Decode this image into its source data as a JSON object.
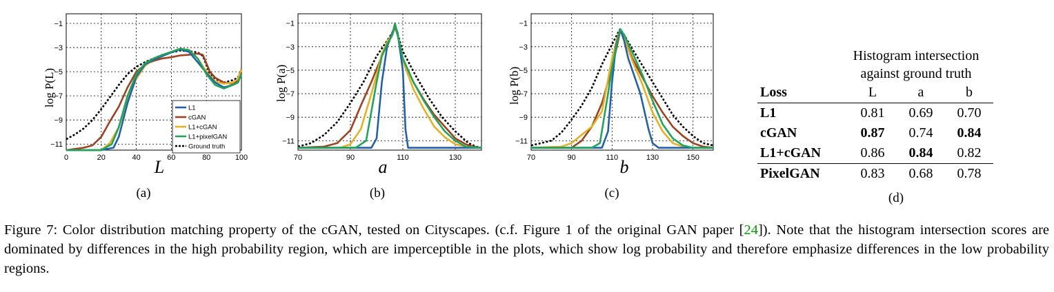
{
  "colors": {
    "l1": "#2160b0",
    "cgan": "#a0401e",
    "l1_cgan": "#e6b020",
    "l1_pixelgan": "#1fa55a",
    "ground_truth": "#000000",
    "ref_link": "#00a000"
  },
  "chart_data": [
    {
      "type": "line",
      "panel_label": "(a)",
      "xlabel": "L",
      "ylabel": "log P(L)",
      "xlim": [
        0,
        100
      ],
      "ylim": [
        -11.5,
        -0.2
      ],
      "xticks": [
        "0",
        "20",
        "40",
        "60",
        "80",
        "100"
      ],
      "yticks": [
        "-1",
        "-3",
        "-5",
        "-7",
        "-9",
        "-11"
      ],
      "grid": true,
      "legend": {
        "position": "bottom-right",
        "entries": [
          "L1",
          "cGAN",
          "L1+cGAN",
          "L1+pixelGAN",
          "Ground truth"
        ]
      },
      "series": [
        {
          "name": "L1",
          "x": [
            0,
            20,
            27,
            30,
            35,
            40,
            45,
            50,
            55,
            60,
            65,
            70,
            75,
            80,
            85,
            90,
            95,
            98,
            100
          ],
          "y": [
            -11.5,
            -11.5,
            -11.3,
            -10.4,
            -7.6,
            -5.4,
            -4.4,
            -4.0,
            -3.7,
            -3.4,
            -3.15,
            -3.35,
            -4.2,
            -5.1,
            -5.9,
            -6.3,
            -6.1,
            -5.9,
            -5.2
          ]
        },
        {
          "name": "cGAN",
          "x": [
            0,
            10,
            15,
            20,
            25,
            30,
            35,
            40,
            45,
            50,
            55,
            60,
            65,
            70,
            75,
            78,
            82,
            85,
            90,
            95,
            98,
            100
          ],
          "y": [
            -11.5,
            -11.3,
            -11.1,
            -10.4,
            -9.1,
            -7.9,
            -6.3,
            -5.0,
            -4.4,
            -4.1,
            -3.9,
            -3.8,
            -3.65,
            -3.6,
            -3.5,
            -3.6,
            -5.0,
            -5.5,
            -5.9,
            -6.0,
            -5.7,
            -4.8
          ]
        },
        {
          "name": "L1+cGAN",
          "x": [
            0,
            20,
            25,
            30,
            35,
            40,
            45,
            50,
            55,
            60,
            65,
            70,
            75,
            80,
            85,
            90,
            95,
            98,
            100
          ],
          "y": [
            -11.5,
            -11.5,
            -10.9,
            -9.6,
            -7.4,
            -5.6,
            -4.5,
            -4.0,
            -3.7,
            -3.4,
            -3.1,
            -3.2,
            -3.9,
            -5.0,
            -5.8,
            -6.0,
            -5.9,
            -5.6,
            -4.8
          ]
        },
        {
          "name": "L1+pixelGAN",
          "x": [
            0,
            20,
            26,
            30,
            35,
            40,
            45,
            50,
            55,
            60,
            65,
            70,
            75,
            80,
            85,
            90,
            95,
            98,
            100
          ],
          "y": [
            -11.5,
            -11.5,
            -11.0,
            -9.6,
            -7.0,
            -5.2,
            -4.3,
            -3.9,
            -3.6,
            -3.35,
            -3.1,
            -3.2,
            -3.9,
            -5.2,
            -6.1,
            -6.4,
            -6.1,
            -5.9,
            -5.2
          ]
        },
        {
          "name": "Ground truth",
          "x": [
            0,
            5,
            10,
            15,
            20,
            25,
            30,
            35,
            40,
            45,
            50,
            55,
            60,
            65,
            70,
            75,
            78,
            82,
            85,
            90,
            95,
            98,
            100
          ],
          "y": [
            -10.6,
            -10.2,
            -9.7,
            -9.0,
            -8.1,
            -7.1,
            -6.1,
            -5.2,
            -4.6,
            -4.2,
            -3.9,
            -3.6,
            -3.4,
            -3.25,
            -3.3,
            -3.4,
            -3.7,
            -5.2,
            -5.6,
            -5.9,
            -5.7,
            -5.5,
            -4.8
          ]
        }
      ]
    },
    {
      "type": "line",
      "panel_label": "(b)",
      "xlabel": "a",
      "ylabel": "log P(a)",
      "xlim": [
        70,
        140
      ],
      "ylim": [
        -11.8,
        -0.2
      ],
      "xticks": [
        "70",
        "90",
        "110",
        "130"
      ],
      "yticks": [
        "-1",
        "-3",
        "-5",
        "-7",
        "-9",
        "-11"
      ],
      "grid": true,
      "series": [
        {
          "name": "L1",
          "x": [
            70,
            98,
            100,
            102,
            104,
            106,
            107,
            108,
            110,
            111,
            112,
            140
          ],
          "y": [
            -11.6,
            -11.6,
            -10.8,
            -6.0,
            -3.0,
            -1.8,
            -1.2,
            -1.8,
            -5.0,
            -10.0,
            -11.6,
            -11.6
          ]
        },
        {
          "name": "cGAN",
          "x": [
            70,
            80,
            85,
            90,
            94,
            98,
            102,
            104,
            106,
            107,
            108,
            110,
            114,
            118,
            122,
            126,
            130,
            134,
            137,
            140
          ],
          "y": [
            -11.6,
            -11.5,
            -11.2,
            -10.1,
            -8.0,
            -6.0,
            -3.8,
            -2.8,
            -2.0,
            -1.3,
            -2.0,
            -4.0,
            -6.0,
            -7.5,
            -8.8,
            -9.8,
            -10.8,
            -11.3,
            -11.5,
            -11.6
          ]
        },
        {
          "name": "L1+cGAN",
          "x": [
            70,
            86,
            90,
            94,
            98,
            100,
            102,
            104,
            106,
            107,
            108,
            110,
            114,
            118,
            122,
            126,
            130,
            134,
            140
          ],
          "y": [
            -11.6,
            -11.6,
            -11.3,
            -10.0,
            -7.0,
            -5.4,
            -3.6,
            -2.6,
            -1.9,
            -1.2,
            -1.9,
            -4.2,
            -6.6,
            -8.3,
            -9.8,
            -10.7,
            -11.3,
            -11.5,
            -11.6
          ]
        },
        {
          "name": "L1+pixelGAN",
          "x": [
            70,
            92,
            96,
            98,
            100,
            102,
            104,
            106,
            107,
            108,
            110,
            114,
            118,
            122,
            126,
            130,
            134,
            140
          ],
          "y": [
            -11.6,
            -11.6,
            -11.0,
            -8.5,
            -6.0,
            -3.8,
            -2.8,
            -2.0,
            -1.0,
            -2.0,
            -4.0,
            -6.0,
            -7.6,
            -9.0,
            -10.2,
            -11.0,
            -11.5,
            -11.6
          ]
        },
        {
          "name": "Ground truth",
          "x": [
            70,
            75,
            80,
            85,
            90,
            95,
            100,
            104,
            106,
            107,
            108,
            110,
            115,
            120,
            125,
            130,
            135,
            138,
            140
          ],
          "y": [
            -11.5,
            -11.2,
            -10.5,
            -9.4,
            -7.8,
            -6.0,
            -3.8,
            -2.5,
            -1.8,
            -1.3,
            -1.9,
            -3.4,
            -5.5,
            -7.4,
            -9.0,
            -10.2,
            -11.2,
            -11.5,
            -11.6
          ]
        }
      ]
    },
    {
      "type": "line",
      "panel_label": "(c)",
      "xlabel": "b",
      "ylabel": "log P(b)",
      "xlim": [
        70,
        160
      ],
      "ylim": [
        -11.8,
        -0.2
      ],
      "xticks": [
        "70",
        "90",
        "110",
        "130",
        "150"
      ],
      "yticks": [
        "-1",
        "-3",
        "-5",
        "-7",
        "-9",
        "-11"
      ],
      "grid": true,
      "series": [
        {
          "name": "L1",
          "x": [
            70,
            105,
            108,
            110,
            112,
            114,
            116,
            118,
            120,
            124,
            128,
            130,
            133,
            160
          ],
          "y": [
            -11.6,
            -11.6,
            -10.2,
            -6.0,
            -2.8,
            -1.5,
            -2.5,
            -4.0,
            -5.0,
            -7.0,
            -10.0,
            -11.2,
            -11.6,
            -11.6
          ]
        },
        {
          "name": "cGAN",
          "x": [
            70,
            90,
            95,
            100,
            105,
            110,
            113,
            114,
            116,
            120,
            125,
            130,
            135,
            140,
            145,
            150,
            155,
            160
          ],
          "y": [
            -11.6,
            -11.6,
            -11.0,
            -9.8,
            -7.8,
            -4.8,
            -2.5,
            -1.6,
            -2.3,
            -4.0,
            -5.6,
            -7.2,
            -8.6,
            -9.8,
            -10.6,
            -11.2,
            -11.5,
            -11.6
          ]
        },
        {
          "name": "L1+cGAN",
          "x": [
            70,
            85,
            90,
            95,
            100,
            105,
            110,
            113,
            114,
            116,
            120,
            125,
            130,
            135,
            140,
            145,
            150,
            160
          ],
          "y": [
            -11.6,
            -11.5,
            -11.2,
            -10.5,
            -9.8,
            -8.5,
            -4.0,
            -2.0,
            -1.6,
            -2.3,
            -4.2,
            -6.2,
            -8.6,
            -10.2,
            -11.2,
            -11.5,
            -11.6,
            -11.6
          ]
        },
        {
          "name": "L1+pixelGAN",
          "x": [
            70,
            100,
            104,
            108,
            110,
            113,
            114,
            116,
            120,
            125,
            130,
            135,
            140,
            145,
            150,
            160
          ],
          "y": [
            -11.6,
            -11.6,
            -11.2,
            -7.0,
            -4.8,
            -2.2,
            -1.5,
            -2.0,
            -3.5,
            -5.4,
            -7.6,
            -9.6,
            -10.8,
            -11.4,
            -11.6,
            -11.6
          ]
        },
        {
          "name": "Ground truth",
          "x": [
            70,
            80,
            85,
            90,
            95,
            100,
            105,
            110,
            113,
            114,
            116,
            120,
            125,
            130,
            135,
            140,
            145,
            150,
            155,
            160
          ],
          "y": [
            -11.4,
            -11.0,
            -10.3,
            -9.2,
            -8.0,
            -6.5,
            -4.5,
            -2.8,
            -1.8,
            -1.5,
            -2.0,
            -3.2,
            -4.6,
            -6.0,
            -7.4,
            -8.8,
            -9.8,
            -10.6,
            -11.2,
            -11.4
          ]
        }
      ]
    }
  ],
  "table": {
    "title_line1": "Histogram intersection",
    "title_line2": "against ground truth",
    "columns": [
      "Loss",
      "L",
      "a",
      "b"
    ],
    "rows": [
      {
        "loss": "L1",
        "L": "0.81",
        "a": "0.69",
        "b": "0.70",
        "bold": []
      },
      {
        "loss": "cGAN",
        "L": "0.87",
        "a": "0.74",
        "b": "0.84",
        "bold": [
          "L",
          "b"
        ]
      },
      {
        "loss": "L1+cGAN",
        "L": "0.86",
        "a": "0.84",
        "b": "0.82",
        "bold": [
          "a"
        ]
      },
      {
        "loss": "PixelGAN",
        "L": "0.83",
        "a": "0.68",
        "b": "0.78",
        "bold": []
      }
    ],
    "panel_label": "(d)"
  },
  "caption": {
    "part1": "Figure 7: Color distribution matching property of the cGAN, tested on Cityscapes. (c.f. Figure 1 of the original GAN paper [",
    "ref": "24",
    "part2": "]). Note that the histogram intersection scores are dominated by differences in the high probability region, which are imperceptible in the plots, which show log probability and therefore emphasize differences in the low probability regions."
  }
}
